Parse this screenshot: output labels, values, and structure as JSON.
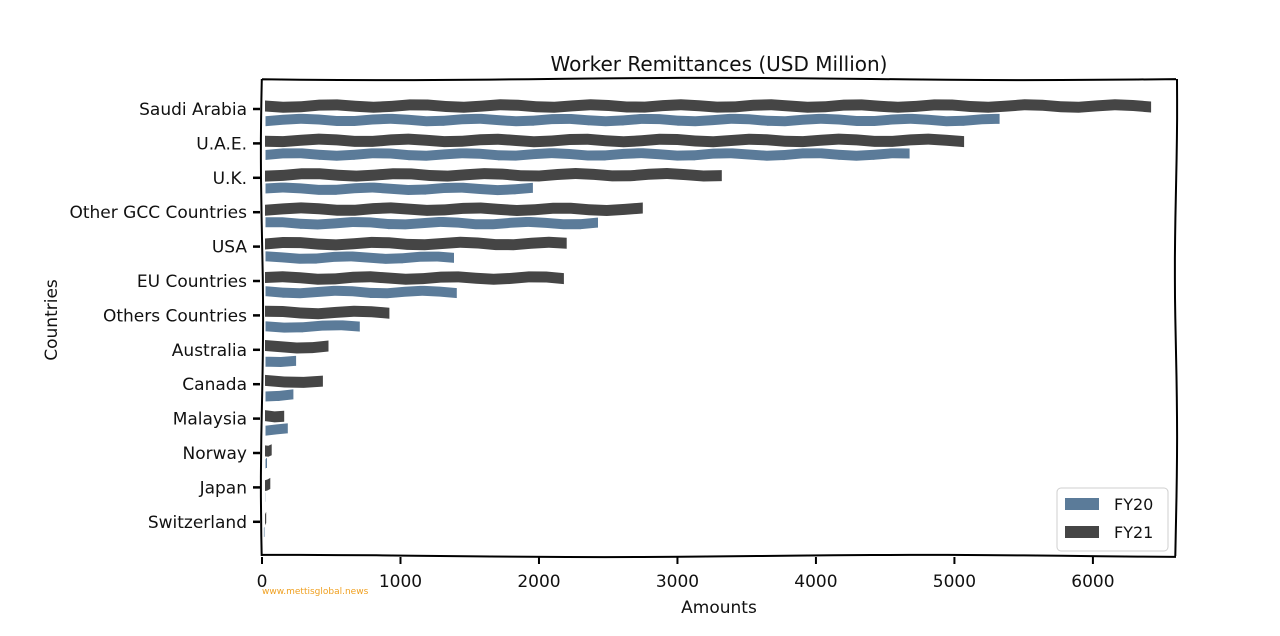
{
  "chart_data": {
    "type": "bar",
    "orientation": "horizontal",
    "title": "Worker Remittances (USD Million)",
    "xlabel": "Amounts",
    "ylabel": "Countries",
    "xlim": [
      0,
      6600
    ],
    "xticks": [
      0,
      1000,
      2000,
      3000,
      4000,
      5000,
      6000
    ],
    "xtick_labels": [
      "0",
      "1000",
      "2000",
      "3000",
      "4000",
      "5000",
      "6000"
    ],
    "grid": false,
    "legend_position": "bottom-right",
    "categories": [
      "Saudi Arabia",
      "U.A.E.",
      "U.K.",
      "Other GCC Countries",
      "USA",
      "EU Countries",
      "Others Countries",
      "Australia",
      "Canada",
      "Malaysia",
      "Norway",
      "Japan",
      "Switzerland"
    ],
    "series": [
      {
        "name": "FY20",
        "color": "#5b7b99",
        "values": [
          5330,
          4680,
          1960,
          2430,
          1390,
          1410,
          710,
          250,
          230,
          190,
          40,
          30,
          10
        ]
      },
      {
        "name": "FY21",
        "color": "#454545",
        "values": [
          6420,
          5070,
          3320,
          2750,
          2200,
          2180,
          920,
          480,
          440,
          160,
          70,
          60,
          30
        ]
      }
    ]
  },
  "watermark": "www.mettisglobal.news"
}
